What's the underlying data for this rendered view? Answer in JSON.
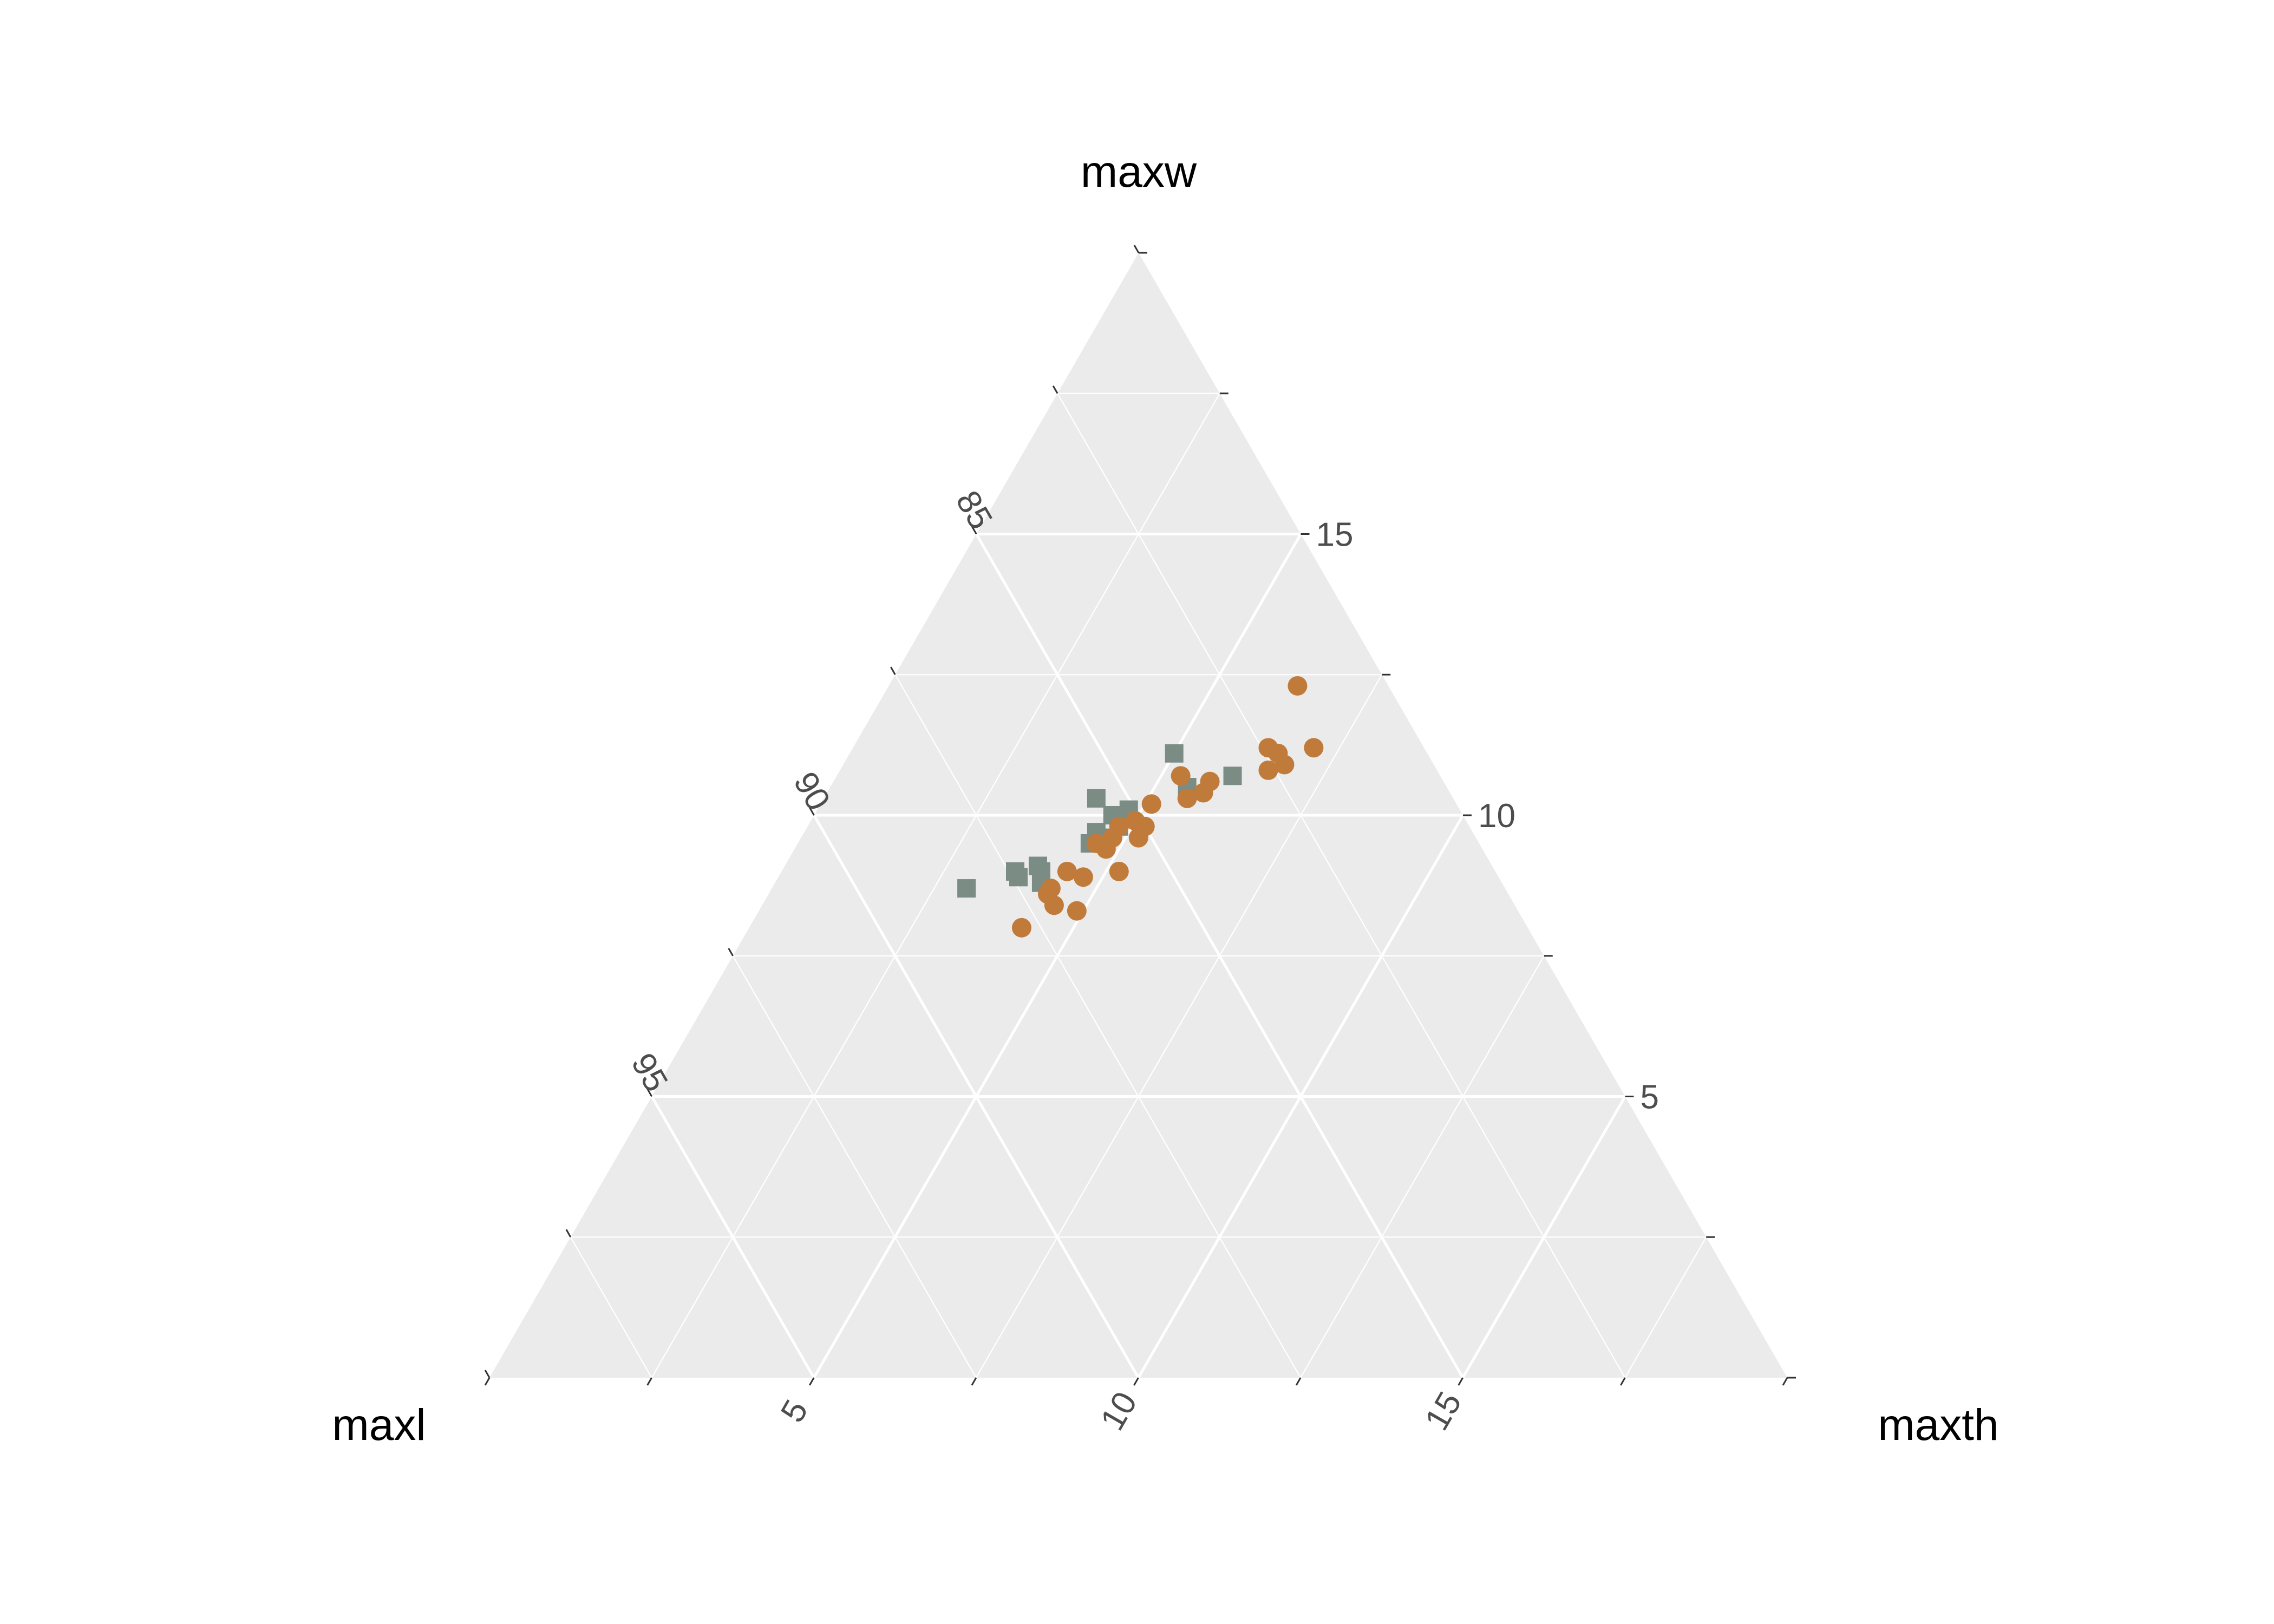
{
  "chart_data": {
    "type": "scatter",
    "subtype": "ternary",
    "axes": {
      "top": "maxw",
      "left": "maxl",
      "right": "maxth"
    },
    "limits": {
      "maxw": [
        0,
        20
      ],
      "maxl": [
        80,
        100
      ],
      "maxth": [
        0,
        20
      ]
    },
    "ticks": {
      "maxw": [
        5,
        10,
        15
      ],
      "maxl": [
        85,
        90,
        95
      ],
      "maxth": [
        5,
        10,
        15
      ]
    },
    "grid": true,
    "legend": "none",
    "series": [
      {
        "marker": "square",
        "color": "#7a8c84",
        "points": [
          {
            "maxw": 11.1,
            "maxth": 5.0
          },
          {
            "maxw": 10.3,
            "maxth": 4.2
          },
          {
            "maxw": 10.1,
            "maxth": 4.8
          },
          {
            "maxw": 10.0,
            "maxth": 4.6
          },
          {
            "maxw": 9.8,
            "maxth": 4.8
          },
          {
            "maxw": 9.7,
            "maxth": 4.5
          },
          {
            "maxw": 9.6,
            "maxth": 4.7
          },
          {
            "maxw": 9.5,
            "maxth": 4.5
          },
          {
            "maxw": 10.5,
            "maxth": 5.5
          },
          {
            "maxw": 10.7,
            "maxth": 6.1
          },
          {
            "maxw": 9.0,
            "maxth": 3.6
          },
          {
            "maxw": 9.1,
            "maxth": 3.9
          },
          {
            "maxw": 9.0,
            "maxth": 4.0
          },
          {
            "maxw": 8.8,
            "maxth": 4.1
          },
          {
            "maxw": 8.9,
            "maxth": 3.7
          },
          {
            "maxw": 8.7,
            "maxth": 3.0
          }
        ]
      },
      {
        "marker": "circle",
        "color": "#c07a3a",
        "points": [
          {
            "maxw": 12.3,
            "maxth": 6.3
          },
          {
            "maxw": 11.2,
            "maxth": 6.4
          },
          {
            "maxw": 11.1,
            "maxth": 6.6
          },
          {
            "maxw": 11.2,
            "maxth": 7.1
          },
          {
            "maxw": 10.9,
            "maxth": 6.8
          },
          {
            "maxw": 10.8,
            "maxth": 6.6
          },
          {
            "maxw": 10.7,
            "maxth": 5.3
          },
          {
            "maxw": 10.4,
            "maxth": 5.8
          },
          {
            "maxw": 10.3,
            "maxth": 5.6
          },
          {
            "maxw": 10.6,
            "maxth": 5.8
          },
          {
            "maxw": 10.2,
            "maxth": 5.1
          },
          {
            "maxw": 9.9,
            "maxth": 5.0
          },
          {
            "maxw": 9.8,
            "maxth": 4.8
          },
          {
            "maxw": 9.8,
            "maxth": 5.2
          },
          {
            "maxw": 9.6,
            "maxth": 4.8
          },
          {
            "maxw": 9.6,
            "maxth": 5.2
          },
          {
            "maxw": 9.5,
            "maxth": 4.6
          },
          {
            "maxw": 9.4,
            "maxth": 4.8
          },
          {
            "maxw": 9.0,
            "maxth": 4.4
          },
          {
            "maxw": 9.0,
            "maxth": 5.2
          },
          {
            "maxw": 8.9,
            "maxth": 4.7
          },
          {
            "maxw": 8.7,
            "maxth": 4.3
          },
          {
            "maxw": 8.6,
            "maxth": 4.3
          },
          {
            "maxw": 8.4,
            "maxth": 4.5
          },
          {
            "maxw": 8.3,
            "maxth": 4.9
          },
          {
            "maxw": 8.0,
            "maxth": 4.2
          }
        ]
      }
    ]
  }
}
